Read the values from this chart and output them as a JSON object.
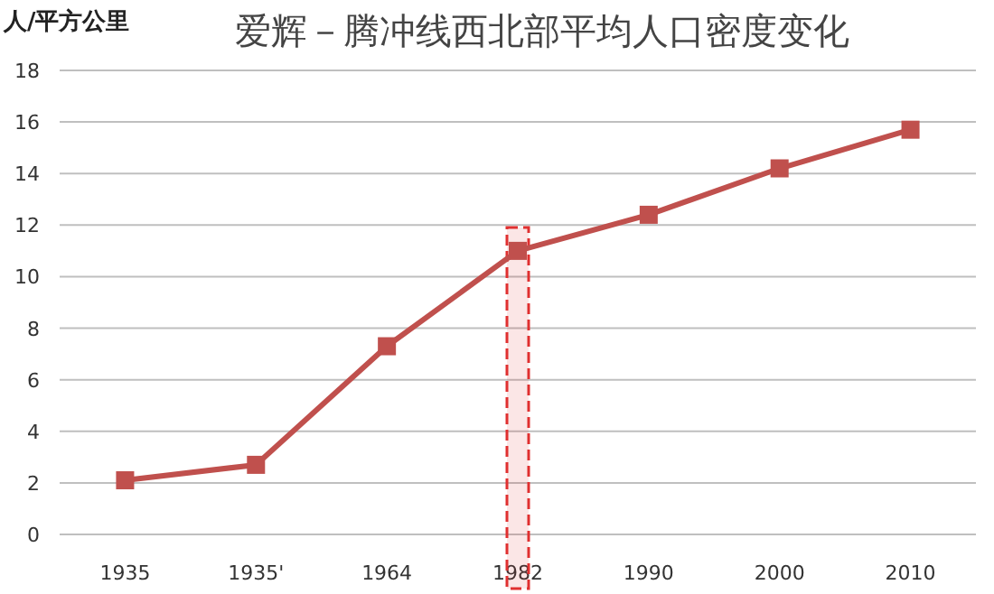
{
  "chart_data": {
    "type": "line",
    "title": "爱辉－腾冲线西北部平均人口密度变化",
    "ylabel": "人/平方公里",
    "categories": [
      "1935",
      "1935'",
      "1964",
      "1982",
      "1990",
      "2000",
      "2010"
    ],
    "series": [
      {
        "color": "#c0504d",
        "values": [
          2.1,
          2.7,
          7.3,
          11.0,
          12.4,
          14.2,
          15.7
        ]
      }
    ],
    "ylim": [
      0,
      18
    ],
    "yticks": [
      0,
      2,
      4,
      6,
      8,
      10,
      12,
      14,
      16,
      18
    ],
    "grid": "y",
    "marker": "square",
    "bands": [
      {
        "axis": "x",
        "from": "1982",
        "to": "1982",
        "color": "#e03030"
      }
    ]
  }
}
